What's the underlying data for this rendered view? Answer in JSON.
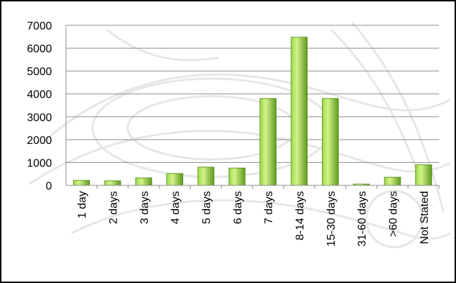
{
  "chart_data": {
    "type": "bar",
    "title": "",
    "xlabel": "",
    "ylabel": "",
    "categories": [
      "1 day",
      "2 days",
      "3 days",
      "4 days",
      "5 days",
      "6 days",
      "7 days",
      "8-14 days",
      "15-30 days",
      "31-60 days",
      ">60 days",
      "Not Stated"
    ],
    "values": [
      220,
      200,
      330,
      520,
      800,
      760,
      3800,
      6480,
      3800,
      60,
      360,
      900
    ],
    "ylim": [
      0,
      7000
    ],
    "yticks": [
      0,
      1000,
      2000,
      3000,
      4000,
      5000,
      6000,
      7000
    ],
    "grid": true,
    "legend": "none",
    "colors": {
      "bar_light": "#d4f28a",
      "bar_mid": "#9ad84a",
      "bar_dark": "#5f9a1e",
      "bar_edge": "#4e8a14",
      "grid": "#8c8c8c"
    }
  }
}
